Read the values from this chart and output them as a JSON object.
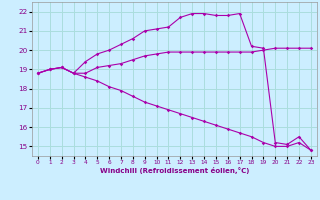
{
  "background_color": "#cceeff",
  "grid_color": "#aadddd",
  "line_color": "#aa00aa",
  "xlim": [
    -0.5,
    23.5
  ],
  "ylim": [
    14.5,
    22.5
  ],
  "xticks": [
    0,
    1,
    2,
    3,
    4,
    5,
    6,
    7,
    8,
    9,
    10,
    11,
    12,
    13,
    14,
    15,
    16,
    17,
    18,
    19,
    20,
    21,
    22,
    23
  ],
  "yticks": [
    15,
    16,
    17,
    18,
    19,
    20,
    21,
    22
  ],
  "xlabel": "Windchill (Refroidissement éolien,°C)",
  "line1_x": [
    0,
    1,
    2,
    3,
    4,
    5,
    6,
    7,
    8,
    9,
    10,
    11,
    12,
    13,
    14,
    15,
    16,
    17,
    18,
    19,
    20,
    21,
    22,
    23
  ],
  "line1_y": [
    18.8,
    19.0,
    19.1,
    18.8,
    18.8,
    19.1,
    19.2,
    19.3,
    19.5,
    19.7,
    19.8,
    19.9,
    19.9,
    19.9,
    19.9,
    19.9,
    19.9,
    19.9,
    19.9,
    20.0,
    20.1,
    20.1,
    20.1,
    20.1
  ],
  "line2_x": [
    0,
    1,
    2,
    3,
    4,
    5,
    6,
    7,
    8,
    9,
    10,
    11,
    12,
    13,
    14,
    15,
    16,
    17,
    18,
    19,
    20,
    21,
    22,
    23
  ],
  "line2_y": [
    18.8,
    19.0,
    19.1,
    18.8,
    19.4,
    19.8,
    20.0,
    20.3,
    20.6,
    21.0,
    21.1,
    21.2,
    21.7,
    21.9,
    21.9,
    21.8,
    21.8,
    21.9,
    20.2,
    20.1,
    15.2,
    15.1,
    15.5,
    14.8
  ],
  "line3_x": [
    0,
    1,
    2,
    3,
    4,
    5,
    6,
    7,
    8,
    9,
    10,
    11,
    12,
    13,
    14,
    15,
    16,
    17,
    18,
    19,
    20,
    21,
    22,
    23
  ],
  "line3_y": [
    18.8,
    19.0,
    19.1,
    18.8,
    18.6,
    18.4,
    18.1,
    17.9,
    17.6,
    17.3,
    17.1,
    16.9,
    16.7,
    16.5,
    16.3,
    16.1,
    15.9,
    15.7,
    15.5,
    15.2,
    15.0,
    15.0,
    15.2,
    14.8
  ]
}
